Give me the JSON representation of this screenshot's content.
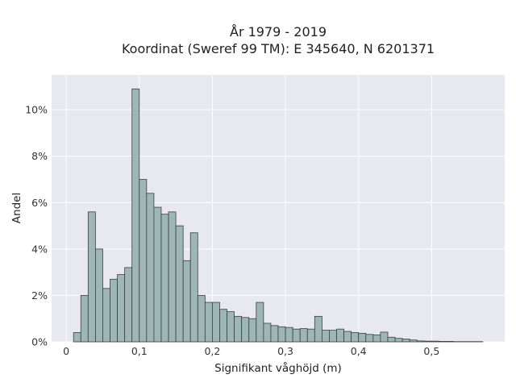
{
  "chart_data": {
    "type": "bar",
    "title": "År 1979 - 2019",
    "subtitle": "Koordinat (Sweref 99 TM): E 345640, N 6201371",
    "xlabel": "Signifikant våghöjd (m)",
    "ylabel": "Andel",
    "xlim": [
      -0.02,
      0.6
    ],
    "ylim": [
      0,
      11.5
    ],
    "x_ticks": [
      0,
      0.1,
      0.2,
      0.3,
      0.4,
      0.5
    ],
    "x_tick_labels": [
      "0",
      "0,1",
      "0,2",
      "0,3",
      "0,4",
      "0,5"
    ],
    "y_ticks": [
      0,
      2,
      4,
      6,
      8,
      10
    ],
    "y_tick_labels": [
      "0%",
      "2%",
      "4%",
      "6%",
      "8%",
      "10%"
    ],
    "grid": true,
    "bin_width": 0.01,
    "bin_starts": [
      0.01,
      0.02,
      0.03,
      0.04,
      0.05,
      0.06,
      0.07,
      0.08,
      0.09,
      0.1,
      0.11,
      0.12,
      0.13,
      0.14,
      0.15,
      0.16,
      0.17,
      0.18,
      0.19,
      0.2,
      0.21,
      0.22,
      0.23,
      0.24,
      0.25,
      0.26,
      0.27,
      0.28,
      0.29,
      0.3,
      0.31,
      0.32,
      0.33,
      0.34,
      0.35,
      0.36,
      0.37,
      0.38,
      0.39,
      0.4,
      0.41,
      0.42,
      0.43,
      0.44,
      0.45,
      0.46,
      0.47,
      0.48,
      0.49,
      0.5,
      0.51,
      0.52,
      0.53,
      0.54,
      0.55,
      0.56
    ],
    "values": [
      0.4,
      2.0,
      5.6,
      4.0,
      2.3,
      2.7,
      2.9,
      3.2,
      10.9,
      7.0,
      6.4,
      5.8,
      5.5,
      5.6,
      5.0,
      3.5,
      4.7,
      2.0,
      1.7,
      1.7,
      1.4,
      1.3,
      1.1,
      1.05,
      1.0,
      1.7,
      0.8,
      0.7,
      0.65,
      0.62,
      0.55,
      0.57,
      0.55,
      1.1,
      0.5,
      0.5,
      0.55,
      0.45,
      0.4,
      0.37,
      0.32,
      0.3,
      0.42,
      0.2,
      0.15,
      0.12,
      0.08,
      0.04,
      0.03,
      0.03,
      0.02,
      0.02,
      0.01,
      0.01,
      0.01,
      0.01
    ],
    "colors": {
      "bar_fill": "#9fb6b6",
      "bar_edge": "#3a4040",
      "plot_background": "#e8e8f0",
      "grid": "#ffffff"
    }
  }
}
